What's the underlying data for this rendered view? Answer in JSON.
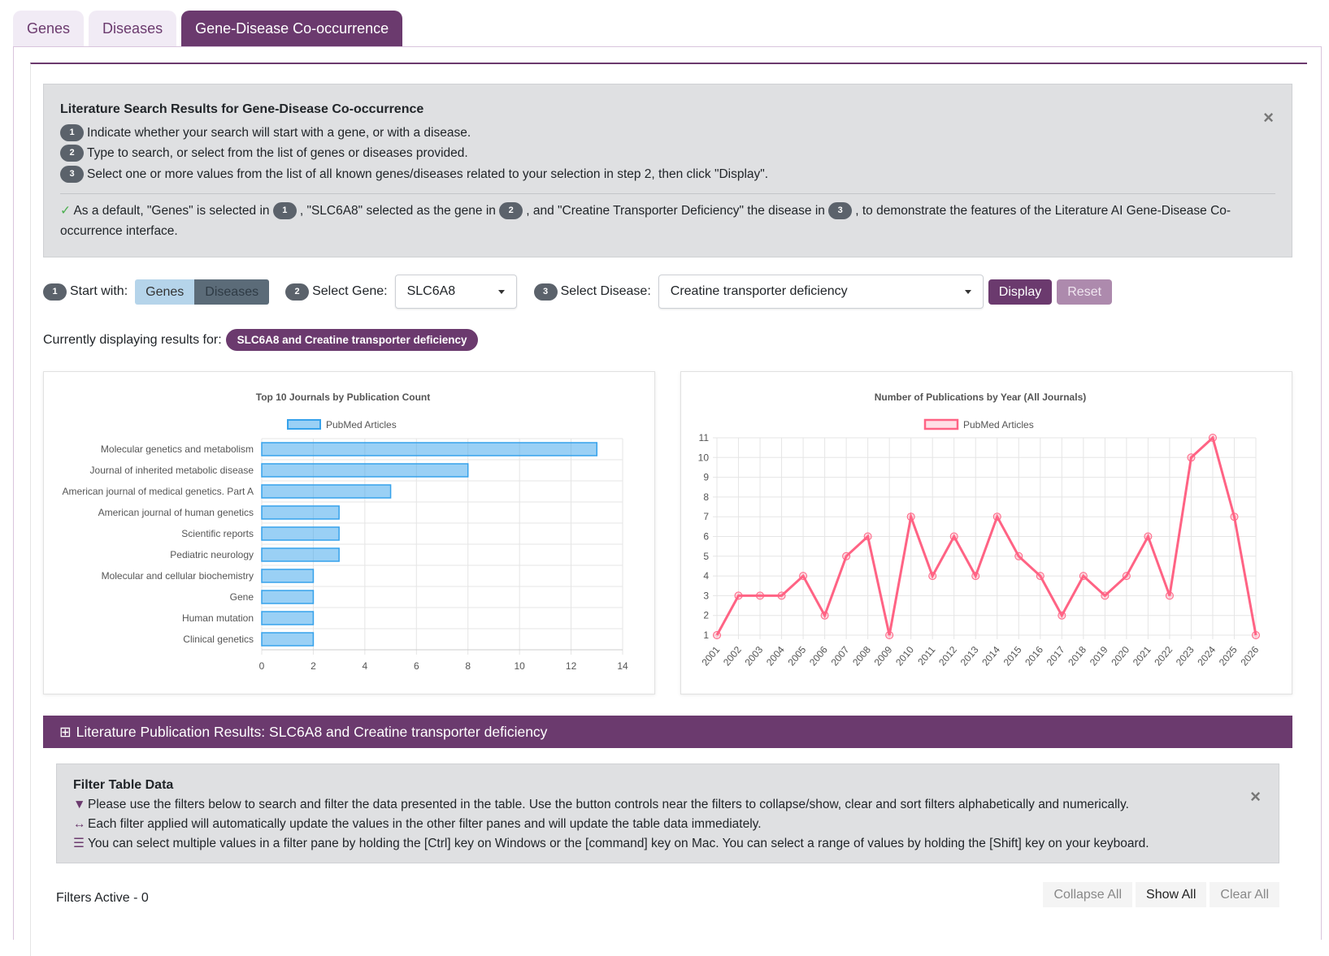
{
  "tabs": [
    "Genes",
    "Diseases",
    "Gene-Disease Co-occurrence"
  ],
  "info": {
    "title": "Literature Search Results for Gene-Disease Co-occurrence",
    "steps": [
      "Indicate whether your search will start with a gene, or with a disease.",
      "Type to search, or select from the list of genes or diseases provided.",
      "Select one or more values from the list of all known genes/diseases related to your selection in step 2, then click \"Display\"."
    ],
    "default_a": "As a default, \"Genes\" is selected in",
    "default_b": ", \"SLC6A8\" selected as the gene in",
    "default_c": ", and \"Creatine Transporter Deficiency\" the disease in",
    "default_d": ", to demonstrate the features of the Literature AI Gene-Disease Co-occurrence interface.",
    "close": "×"
  },
  "controls": {
    "start_label": "Start with:",
    "genes": "Genes",
    "diseases": "Diseases",
    "gene_label": "Select Gene:",
    "gene_value": "SLC6A8",
    "disease_label": "Select Disease:",
    "disease_value": "Creatine transporter deficiency",
    "display": "Display",
    "reset": "Reset"
  },
  "current": {
    "label": "Currently displaying results for:",
    "value": "SLC6A8 and Creatine transporter deficiency"
  },
  "chart_data": [
    {
      "type": "bar",
      "orientation": "horizontal",
      "title": "Top 10 Journals by Publication Count",
      "legend": "PubMed Articles",
      "legend_position": "top",
      "grid": true,
      "categories": [
        "Molecular genetics and metabolism",
        "Journal of inherited metabolic disease",
        "American journal of medical genetics. Part A",
        "American journal of human genetics",
        "Scientific reports",
        "Pediatric neurology",
        "Molecular and cellular biochemistry",
        "Gene",
        "Human mutation",
        "Clinical genetics"
      ],
      "values": [
        13,
        8,
        5,
        3,
        3,
        3,
        2,
        2,
        2,
        2
      ],
      "xlim": [
        0,
        14
      ],
      "xticks": [
        0,
        2,
        4,
        6,
        8,
        10,
        12,
        14
      ],
      "color": "#36a2eb"
    },
    {
      "type": "line",
      "title": "Number of Publications by Year (All Journals)",
      "legend": "PubMed Articles",
      "legend_position": "top",
      "grid": true,
      "x": [
        "2001",
        "2002",
        "2003",
        "2004",
        "2005",
        "2006",
        "2007",
        "2008",
        "2009",
        "2010",
        "2011",
        "2012",
        "2013",
        "2014",
        "2015",
        "2016",
        "2017",
        "2018",
        "2019",
        "2020",
        "2021",
        "2022",
        "2023",
        "2024",
        "2025",
        "2026"
      ],
      "values": [
        1,
        3,
        3,
        3,
        4,
        2,
        5,
        6,
        1,
        7,
        4,
        6,
        4,
        7,
        5,
        4,
        2,
        4,
        3,
        4,
        6,
        3,
        10,
        11,
        7,
        1
      ],
      "ylim": [
        1,
        11
      ],
      "yticks": [
        1,
        2,
        3,
        4,
        5,
        6,
        7,
        8,
        9,
        10,
        11
      ],
      "color": "#ff6384"
    }
  ],
  "results": {
    "title": "Literature Publication Results: SLC6A8 and Creatine transporter deficiency"
  },
  "filter": {
    "title": "Filter Table Data",
    "lines": [
      "Please use the filters below to search and filter the data presented in the table. Use the button controls near the filters to collapse/show, clear and sort filters alphabetically and numerically.",
      "Each filter applied will automatically update the values in the other filter panes and will update the table data immediately.",
      "You can select multiple values in a filter pane by holding the [Ctrl] key on Windows or the [command] key on Mac. You can select a range of values by holding the [Shift] key on your keyboard."
    ],
    "close": "×",
    "active": "Filters Active - 0",
    "collapse": "Collapse All",
    "show": "Show All",
    "clear": "Clear All"
  },
  "colors": {
    "brand": "#6b3a6e",
    "bar": "#36a2eb",
    "line": "#ff6384"
  }
}
